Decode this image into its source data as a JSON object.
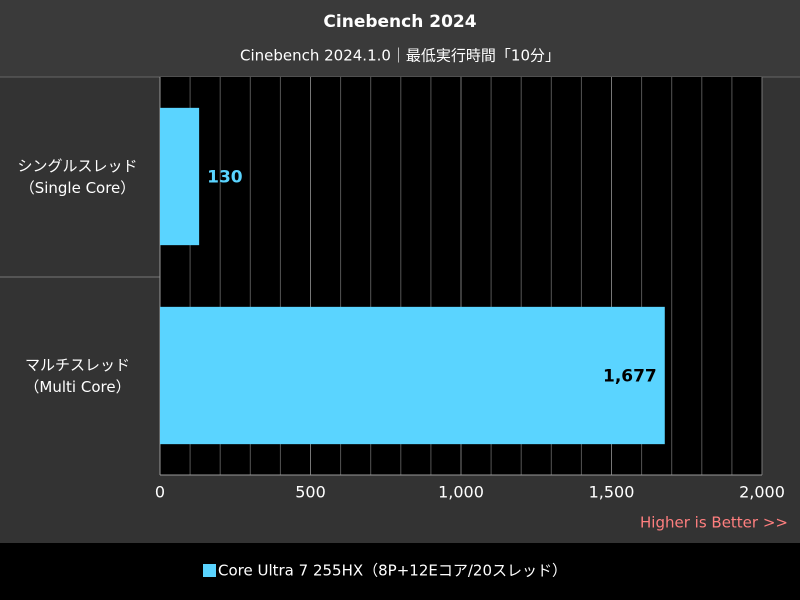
{
  "chart_data": {
    "type": "bar",
    "orientation": "horizontal",
    "title": "Cinebench 2024",
    "subtitle": "Cinebench 2024.1.0｜最低実行時間「10分」",
    "categories": [
      "シングルスレッド\n（Single Core）",
      "マルチスレッド\n（Multi Core）"
    ],
    "series": [
      {
        "name": "Core Ultra 7 255HX（8P+12Eコア/20スレッド）",
        "color": "#5ad4ff",
        "values": [
          130,
          1677
        ],
        "value_labels": [
          "130",
          "1,677"
        ]
      }
    ],
    "xlim": [
      0,
      2000
    ],
    "xticks": [
      0,
      500,
      {
        "value": 1000,
        "label": "1,000"
      },
      {
        "value": 1500,
        "label": "1,500"
      },
      {
        "value": 2000,
        "label": "2,000"
      }
    ],
    "grid": true,
    "annotation": "Higher is Better >>"
  }
}
